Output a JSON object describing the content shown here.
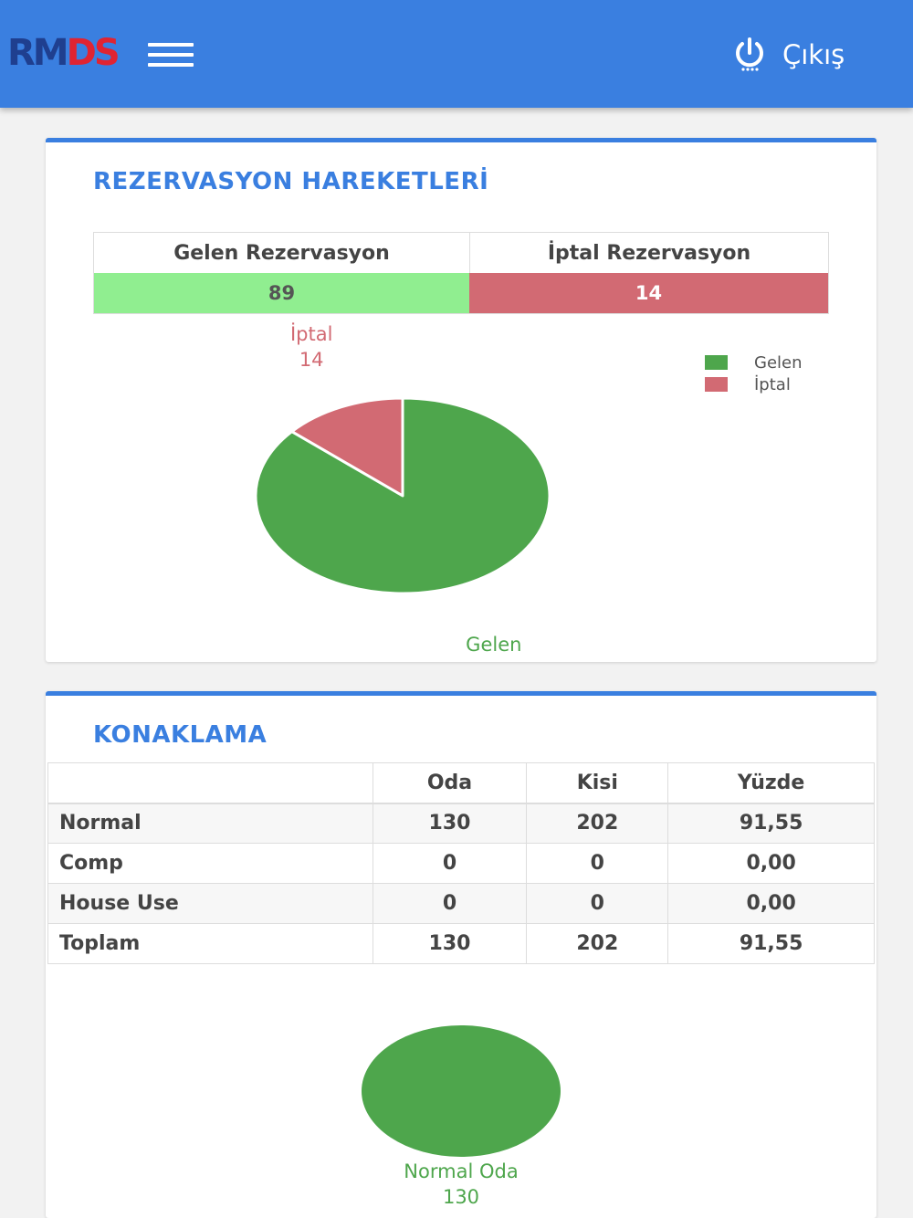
{
  "header": {
    "logo_part1": "RM",
    "logo_part2": "DS",
    "menu_icon": "hamburger-menu-icon",
    "logout_icon": "power-icon",
    "logout_label": "Çıkış",
    "colors": {
      "bar": "#3a7fe0"
    }
  },
  "reservations": {
    "title": "REZERVASYON HAREKETLERİ",
    "headers": [
      "Gelen Rezervasyon",
      "İptal Rezervasyon"
    ],
    "values": [
      "89",
      "14"
    ],
    "colors": {
      "incoming": "#90ee90",
      "cancelled": "#d26a73"
    }
  },
  "accommodation": {
    "title": "KONAKLAMA",
    "columns": [
      "",
      "Oda",
      "Kisi",
      "Yüzde"
    ],
    "rows": [
      {
        "label": "Normal",
        "oda": "130",
        "kisi": "202",
        "yuzde": "91,55"
      },
      {
        "label": "Comp",
        "oda": "0",
        "kisi": "0",
        "yuzde": "0,00"
      },
      {
        "label": "House Use",
        "oda": "0",
        "kisi": "0",
        "yuzde": "0,00"
      },
      {
        "label": "Toplam",
        "oda": "130",
        "kisi": "202",
        "yuzde": "91,55"
      }
    ]
  },
  "chart_data": [
    {
      "type": "pie",
      "title": "",
      "categories": [
        "Gelen",
        "İptal"
      ],
      "values": [
        89,
        14
      ],
      "colors": [
        "#4ea64c",
        "#d26a73"
      ],
      "legend": {
        "position": "top-right",
        "entries": [
          "Gelen",
          "İptal"
        ]
      },
      "data_labels": true
    },
    {
      "type": "pie",
      "title": "",
      "categories": [
        "Normal Oda"
      ],
      "values": [
        130
      ],
      "colors": [
        "#4ea64c"
      ],
      "data_labels": true
    }
  ]
}
